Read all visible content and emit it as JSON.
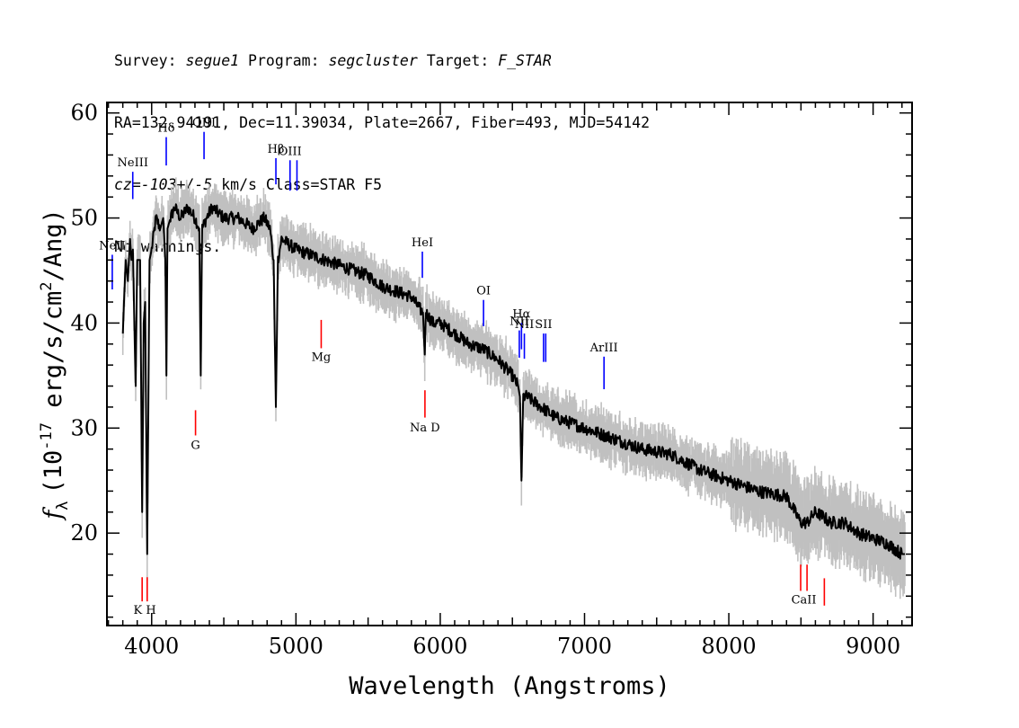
{
  "header": {
    "line1": {
      "survey_label": "Survey: ",
      "survey": "segue1",
      "program_label": " Program: ",
      "program": "segcluster",
      "target_label": " Target: ",
      "target": "F_STAR"
    },
    "line2": "RA=132.94191, Dec=11.39034, Plate=2667, Fiber=493, MJD=54142",
    "line3": {
      "cz": "cz=-103+/-5",
      "rest": " km/s Class=STAR F5"
    },
    "line4": "No warnings."
  },
  "chart_data": {
    "type": "line",
    "xlabel": "Wavelength (Angstroms)",
    "ylabel": "(10",
    "ylabel_symbol": "f",
    "ylabel_sub": "λ",
    "ylabel_sup": "-17",
    "ylabel_unit1": " erg/s/cm",
    "ylabel_sup2": "2",
    "ylabel_unit2": "/Ang)",
    "xlim": [
      3690,
      9270
    ],
    "ylim": [
      11.2,
      61.0
    ],
    "x_ticks": [
      4000,
      5000,
      6000,
      7000,
      8000,
      9000
    ],
    "x_tick_labels": [
      "4000",
      "5000",
      "6000",
      "7000",
      "8000",
      "9000"
    ],
    "y_ticks": [
      20,
      30,
      40,
      50,
      60
    ],
    "y_tick_labels": [
      "20",
      "30",
      "40",
      "50",
      "60"
    ],
    "series": [
      {
        "x": [
          3800,
          3820,
          3835,
          3850,
          3860,
          3870,
          3889,
          3900,
          3920,
          3934,
          3945,
          3955,
          3969,
          3985,
          4000,
          4030,
          4060,
          4080,
          4095,
          4102,
          4110,
          4130,
          4160,
          4200,
          4250,
          4300,
          4330,
          4340,
          4350,
          4380,
          4420,
          4500,
          4600,
          4700,
          4780,
          4820,
          4845,
          4861,
          4875,
          4900,
          4950,
          5000,
          5100,
          5200,
          5300,
          5400,
          5500,
          5600,
          5700,
          5800,
          5850,
          5880,
          5893,
          5900,
          5950,
          6000,
          6100,
          6200,
          6300,
          6400,
          6500,
          6540,
          6552,
          6563,
          6575,
          6600,
          6700,
          6800,
          7000,
          7200,
          7400,
          7600,
          7800,
          8000,
          8200,
          8400,
          8498,
          8542,
          8600,
          8662,
          8700,
          8800,
          8900,
          9000,
          9100,
          9200,
          9220
        ],
        "y": [
          39,
          46,
          44,
          48,
          46,
          47,
          34,
          46,
          46,
          22,
          40,
          42,
          18,
          46,
          47,
          50,
          49,
          50,
          46,
          35,
          49,
          50,
          51,
          50,
          51,
          50,
          49,
          35,
          49,
          50,
          51,
          50,
          50,
          49,
          50,
          49,
          46,
          32,
          46,
          48,
          47.5,
          47,
          46.5,
          46,
          45.5,
          45,
          44.5,
          43.5,
          43,
          42.5,
          41.5,
          41,
          37,
          41,
          40,
          40,
          39,
          38,
          37.5,
          36.5,
          35,
          34,
          33,
          25,
          33,
          33,
          32,
          31,
          30,
          29,
          28,
          27.5,
          26,
          25,
          24,
          23.5,
          21,
          21,
          22,
          21.5,
          21,
          21,
          20,
          19.5,
          19,
          18,
          18
        ]
      }
    ],
    "spectral_lines": [
      {
        "label": "NeII",
        "wavelength": 3727,
        "color": "#0000ff",
        "y_top": 46.5,
        "y_bottom": 43.2,
        "label_above": true
      },
      {
        "label": "NeIII",
        "wavelength": 3869,
        "color": "#0000ff",
        "y_top": 54.4,
        "y_bottom": 51.8,
        "label_above": true
      },
      {
        "label": "Hδ",
        "wavelength": 4101,
        "color": "#0000ff",
        "y_top": 57.7,
        "y_bottom": 55.0,
        "label_above": true
      },
      {
        "label": "OIII",
        "wavelength": 4363,
        "color": "#0000ff",
        "y_top": 58.2,
        "y_bottom": 55.6,
        "label_above": true
      },
      {
        "label": "Hβ",
        "wavelength": 4861,
        "color": "#0000ff",
        "y_top": 55.7,
        "y_bottom": 53.2,
        "label_above": true
      },
      {
        "label": "OIII",
        "wavelength": 4959,
        "color": "#0000ff",
        "y_top": 55.5,
        "y_bottom": 52.6,
        "label_above": true
      },
      {
        "label": "OIII",
        "wavelength": 5007,
        "color": "#0000ff",
        "y_top": 55.5,
        "y_bottom": 52.6,
        "label_above": false
      },
      {
        "label": "HeI",
        "wavelength": 5876,
        "color": "#0000ff",
        "y_top": 46.8,
        "y_bottom": 44.3,
        "label_above": true
      },
      {
        "label": "OI",
        "wavelength": 6300,
        "color": "#0000ff",
        "y_top": 42.2,
        "y_bottom": 39.7,
        "label_above": true
      },
      {
        "label": "NII",
        "wavelength": 6548,
        "color": "#0000ff",
        "y_top": 39.3,
        "y_bottom": 36.7,
        "label_above": true
      },
      {
        "label": "Hα",
        "wavelength": 6563,
        "color": "#0000ff",
        "y_top": 40.0,
        "y_bottom": 37.5,
        "label_above": true
      },
      {
        "label": "NII",
        "wavelength": 6583,
        "color": "#0000ff",
        "y_top": 39.0,
        "y_bottom": 36.6,
        "label_above": true
      },
      {
        "label": "SII",
        "wavelength": 6716,
        "color": "#0000ff",
        "y_top": 39.0,
        "y_bottom": 36.3,
        "label_above": true
      },
      {
        "label": "SII",
        "wavelength": 6731,
        "color": "#0000ff",
        "y_top": 39.0,
        "y_bottom": 36.3,
        "label_above": false
      },
      {
        "label": "ArIII",
        "wavelength": 7135,
        "color": "#0000ff",
        "y_top": 36.8,
        "y_bottom": 33.7,
        "label_above": true
      },
      {
        "label": "G",
        "wavelength": 4304,
        "color": "#ff0000",
        "y_top": 31.7,
        "y_bottom": 29.3,
        "label_above": false
      },
      {
        "label": "Mg",
        "wavelength": 5175,
        "color": "#ff0000",
        "y_top": 40.3,
        "y_bottom": 37.6,
        "label_above": false
      },
      {
        "label": "Na",
        "wavelength": 5894,
        "color": "#ff0000",
        "y_top": 33.6,
        "y_bottom": 31.0,
        "label_above": false
      },
      {
        "label": "K",
        "wavelength": 3934,
        "color": "#ff0000",
        "y_top": 15.8,
        "y_bottom": 13.5,
        "label_above": false
      },
      {
        "label": "H",
        "wavelength": 3969,
        "color": "#ff0000",
        "y_top": 15.8,
        "y_bottom": 13.5,
        "label_above": false
      },
      {
        "label": "CaII",
        "wavelength": 8498,
        "color": "#ff0000",
        "y_top": 17.0,
        "y_bottom": 14.5,
        "label_above": false
      },
      {
        "label": "CaII",
        "wavelength": 8542,
        "color": "#ff0000",
        "y_top": 17.0,
        "y_bottom": 14.5,
        "label_above": false
      },
      {
        "label": "CaII",
        "wavelength": 8662,
        "color": "#ff0000",
        "y_top": 15.7,
        "y_bottom": 13.1,
        "label_above": false
      }
    ],
    "annotations": {
      "k_h": "K H",
      "na_d": "Na  D",
      "caii": "CaII",
      "hbeta": "Hβ",
      "halpha": "Hα"
    },
    "colors": {
      "flux": "#000000",
      "error_band": "#c0c0c0",
      "emission_line": "#0000ff",
      "absorption_line": "#ff0000"
    },
    "grid": false,
    "legend": "none"
  }
}
